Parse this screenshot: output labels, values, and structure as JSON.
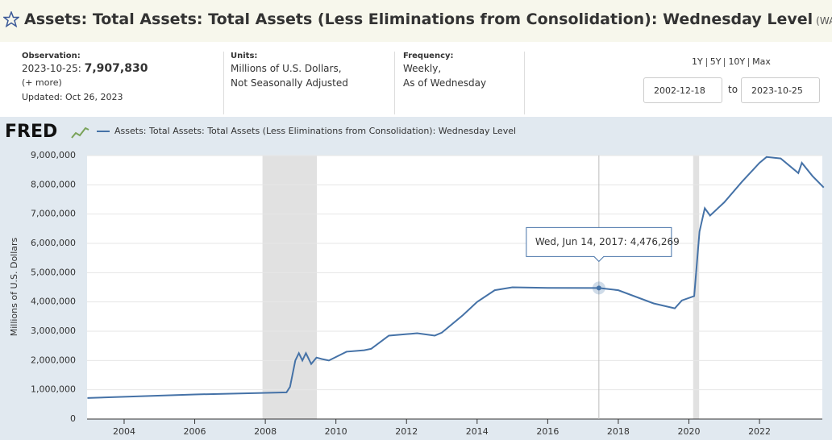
{
  "header": {
    "title": "Assets: Total Assets: Total Assets (Less Eliminations from Consolidation): Wednesday Level",
    "series_id": "(WALCL)"
  },
  "observation": {
    "label": "Observation:",
    "date": "2023-10-25:",
    "value": "7,907,830",
    "more": "(+ more)",
    "updated": "Updated: Oct 26, 2023"
  },
  "units": {
    "label": "Units:",
    "lines": [
      "Millions of U.S. Dollars,",
      "Not Seasonally Adjusted"
    ]
  },
  "frequency": {
    "label": "Frequency:",
    "lines": [
      "Weekly,",
      "As of Wednesday"
    ]
  },
  "range": {
    "links": [
      "1Y",
      "5Y",
      "10Y",
      "Max"
    ],
    "start": "2002-12-18",
    "to": "to",
    "end": "2023-10-25"
  },
  "chart_data": {
    "type": "line",
    "logo": "FRED",
    "y_label": "Millions of U.S. Dollars",
    "series": [
      {
        "name": "Assets: Total Assets: Total Assets (Less Eliminations from Consolidation): Wednesday Level",
        "color": "#4572a7",
        "x": [
          2002.96,
          2004,
          2006,
          2007.9,
          2008.6,
          2008.7,
          2008.85,
          2008.95,
          2009.05,
          2009.15,
          2009.3,
          2009.45,
          2009.6,
          2009.8,
          2010.3,
          2010.8,
          2011.0,
          2011.5,
          2012.0,
          2012.3,
          2012.8,
          2013.0,
          2013.6,
          2014.0,
          2014.5,
          2015.0,
          2016.0,
          2017.45,
          2018.0,
          2019.0,
          2019.6,
          2019.8,
          2020.15,
          2020.3,
          2020.45,
          2020.6,
          2021.0,
          2021.5,
          2022.0,
          2022.2,
          2022.6,
          2023.1,
          2023.2,
          2023.5,
          2023.82
        ],
        "values": [
          720000,
          760000,
          840000,
          890000,
          910000,
          1100000,
          2000000,
          2250000,
          2000000,
          2250000,
          1880000,
          2100000,
          2050000,
          2000000,
          2300000,
          2350000,
          2400000,
          2850000,
          2900000,
          2930000,
          2850000,
          2950000,
          3550000,
          4000000,
          4400000,
          4500000,
          4480000,
          4476269,
          4400000,
          3950000,
          3780000,
          4050000,
          4200000,
          6400000,
          7200000,
          6950000,
          7400000,
          8100000,
          8750000,
          8950000,
          8900000,
          8400000,
          8750000,
          8300000,
          7907830
        ]
      }
    ],
    "recessions": [
      [
        2007.92,
        2009.46
      ],
      [
        2020.12,
        2020.29
      ]
    ],
    "tooltip": {
      "label": "Wed, Jun 14, 2017:",
      "x": 2017.45,
      "value": 4476269,
      "value_label": "4,476,269"
    },
    "xlim": [
      2002.95,
      2023.78
    ],
    "xticks": [
      2004,
      2006,
      2008,
      2010,
      2012,
      2014,
      2016,
      2018,
      2020,
      2022
    ],
    "ylim": [
      0,
      9000000
    ],
    "yticks": [
      0,
      {
        "value": 1000000,
        "label": "1,000,000"
      },
      {
        "value": 2000000,
        "label": "2,000,000"
      },
      {
        "value": 3000000,
        "label": "3,000,000"
      },
      {
        "value": 4000000,
        "label": "4,000,000"
      },
      {
        "value": 5000000,
        "label": "5,000,000"
      },
      {
        "value": 6000000,
        "label": "6,000,000"
      },
      {
        "value": 7000000,
        "label": "7,000,000"
      },
      {
        "value": 8000000,
        "label": "8,000,000"
      },
      {
        "value": 9000000,
        "label": "9,000,000"
      }
    ],
    "grid": true
  }
}
